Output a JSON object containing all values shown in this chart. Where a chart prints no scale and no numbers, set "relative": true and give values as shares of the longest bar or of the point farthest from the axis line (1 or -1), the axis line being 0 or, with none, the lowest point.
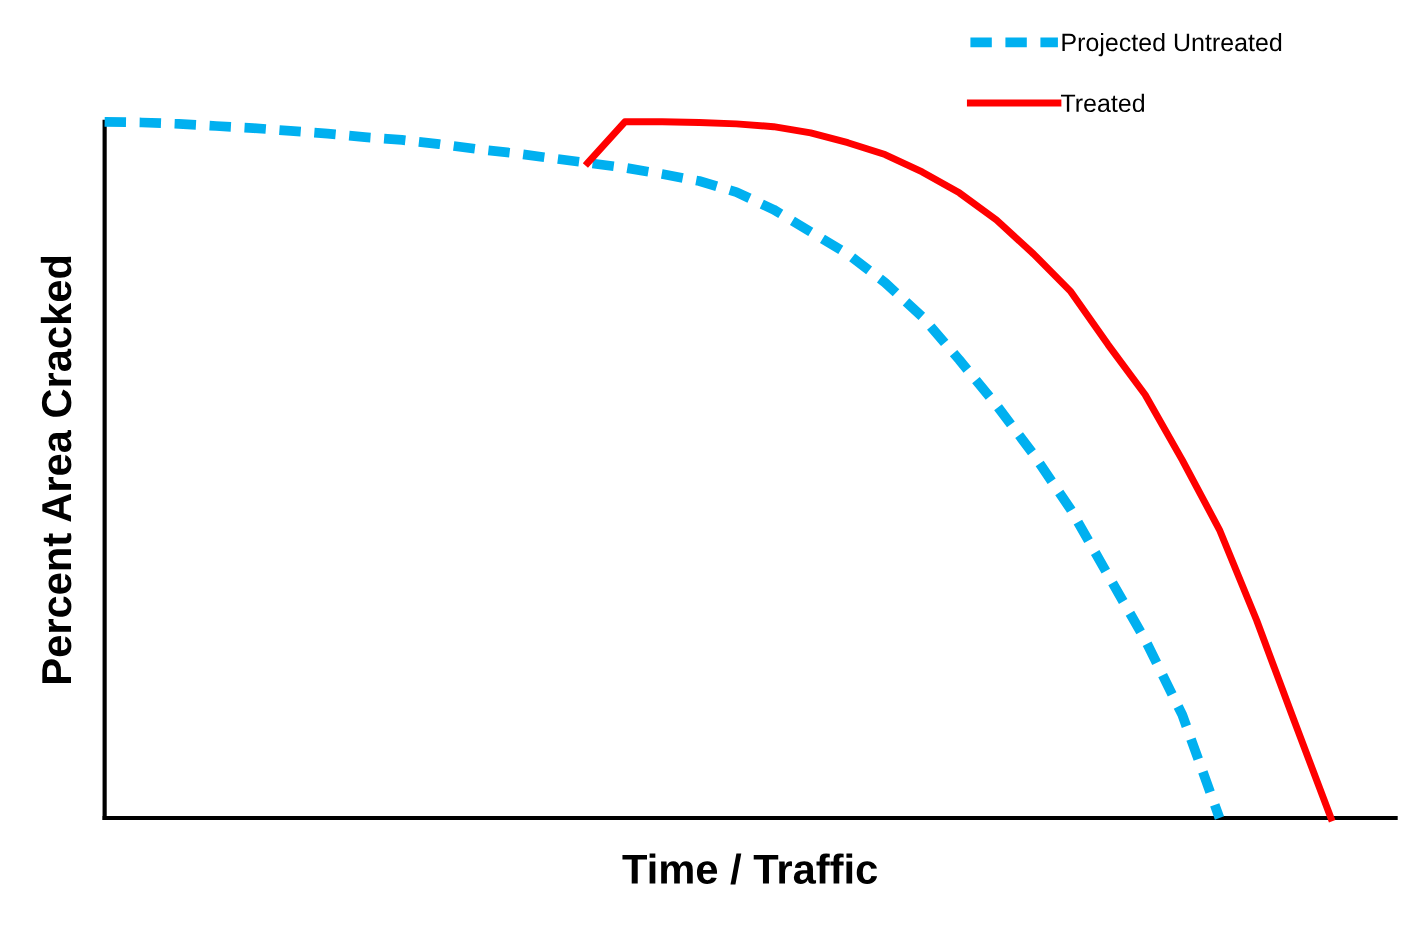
{
  "chart_data": {
    "type": "line",
    "relative": true,
    "xlabel": "Time / Traffic",
    "ylabel": "Percent Area Cracked",
    "categories": [
      null,
      null,
      null,
      null,
      null,
      null,
      null,
      null,
      null,
      null,
      null,
      null,
      null,
      null,
      null,
      null,
      null,
      null,
      null,
      null,
      null,
      null,
      null,
      null,
      null,
      null,
      null,
      null,
      null,
      null,
      null,
      null,
      null,
      null
    ],
    "legend": "top right",
    "grid": false,
    "marker": "none",
    "series": [
      {
        "name": "Projected Untreated",
        "color": "#00b0f0",
        "line_style": "dashed",
        "values": [
          1.0,
          0.999,
          0.997,
          0.994,
          0.991,
          0.987,
          0.983,
          0.978,
          0.974,
          0.968,
          0.961,
          0.955,
          0.948,
          0.941,
          0.934,
          0.925,
          0.915,
          0.899,
          0.874,
          0.842,
          0.81,
          0.769,
          0.72,
          0.658,
          0.593,
          0.522,
          0.443,
          0.349,
          0.256,
          0.148,
          0.0,
          null,
          null,
          null
        ]
      },
      {
        "name": "Treated",
        "color": "#ff0000",
        "line_style": "solid",
        "values": [
          null,
          null,
          null,
          null,
          null,
          null,
          null,
          null,
          null,
          null,
          null,
          null,
          null,
          0.941,
          1.0,
          1.0,
          0.999,
          0.997,
          0.993,
          0.984,
          0.97,
          0.953,
          0.928,
          0.898,
          0.859,
          0.81,
          0.756,
          0.68,
          0.608,
          0.514,
          0.414,
          0.284,
          0.141,
          0.0
        ]
      }
    ]
  }
}
